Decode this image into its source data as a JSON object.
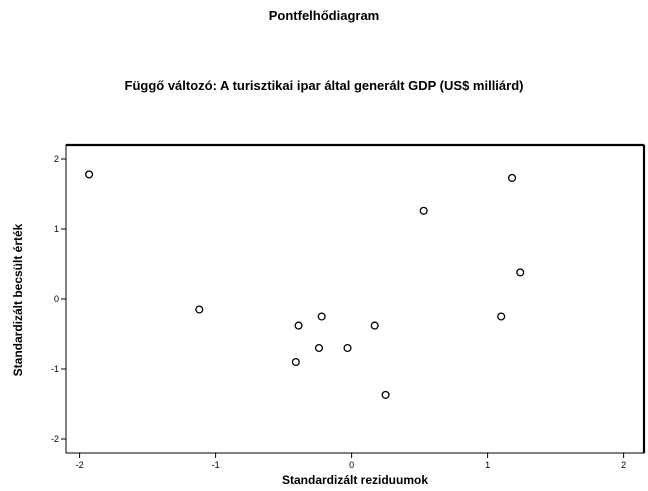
{
  "chart_data": {
    "type": "scatter",
    "title": "Pontfelhődiagram",
    "subtitle": "Függő változó: A turisztikai ipar által generált GDP (US$ milliárd)",
    "xlabel": "Standardizált reziduumok",
    "ylabel": "Standardizált becsült érték",
    "xlim": [
      -2.1,
      2.15
    ],
    "ylim": [
      -2.2,
      2.2
    ],
    "x_ticks": [
      -2,
      -1,
      0,
      1,
      2
    ],
    "y_ticks": [
      2,
      1,
      0,
      -1,
      -2
    ],
    "grid": false,
    "marker": "open-circle",
    "points": [
      {
        "x": -1.93,
        "y": 1.78
      },
      {
        "x": -1.12,
        "y": -0.15
      },
      {
        "x": -0.39,
        "y": -0.38
      },
      {
        "x": -0.41,
        "y": -0.9
      },
      {
        "x": -0.22,
        "y": -0.25
      },
      {
        "x": -0.24,
        "y": -0.7
      },
      {
        "x": -0.03,
        "y": -0.7
      },
      {
        "x": 0.17,
        "y": -0.38
      },
      {
        "x": 0.25,
        "y": -1.37
      },
      {
        "x": 0.53,
        "y": 1.26
      },
      {
        "x": 1.1,
        "y": -0.25
      },
      {
        "x": 1.18,
        "y": 1.73
      },
      {
        "x": 1.24,
        "y": 0.38
      }
    ]
  }
}
